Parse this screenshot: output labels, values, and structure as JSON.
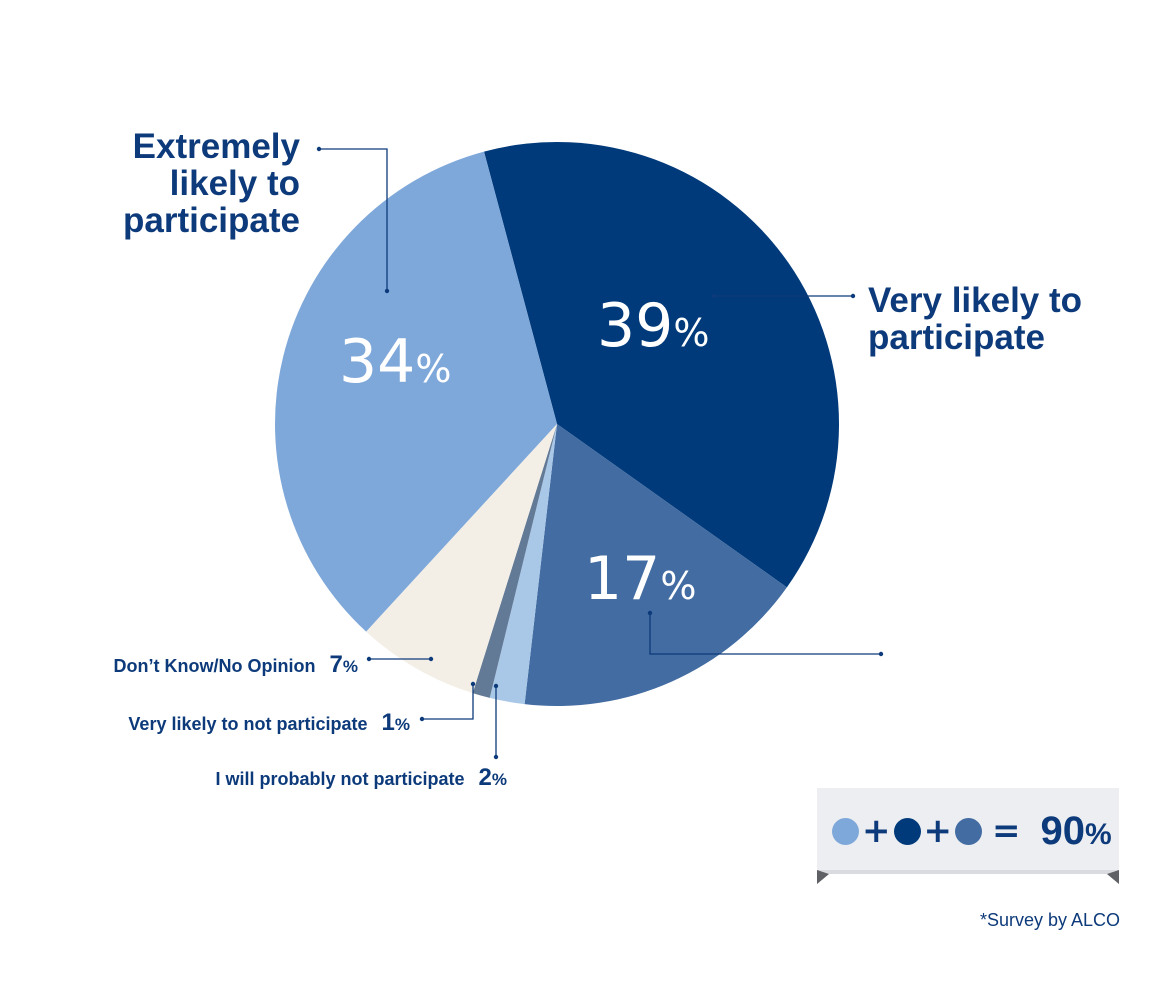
{
  "chart_data": {
    "type": "pie",
    "slices": [
      {
        "label": "Very likely to participate",
        "value": 39,
        "value_text": "39",
        "color": "#003a7a"
      },
      {
        "label": "",
        "value": 17,
        "value_text": "17",
        "color": "#426ca2"
      },
      {
        "label": "I will probably not participate",
        "value": 2,
        "value_text": "2",
        "color": "#a9c8e8"
      },
      {
        "label": "Very likely to not participate",
        "value": 1,
        "value_text": "1",
        "color": "#637a97"
      },
      {
        "label": "Don’t Know/No Opinion",
        "value": 7,
        "value_text": "7",
        "color": "#f3efe6"
      },
      {
        "label": "Extremely likely to participate",
        "value": 34,
        "value_text": "34",
        "color": "#7fa8da"
      }
    ],
    "percent_sign": "%",
    "legend": {
      "items": [
        "#7fa8da",
        "#003a7a",
        "#426ca2"
      ],
      "plus": "+",
      "equals": "=",
      "total_value": "90",
      "total_pct": "%"
    },
    "note": "*Survey by ALCO"
  }
}
